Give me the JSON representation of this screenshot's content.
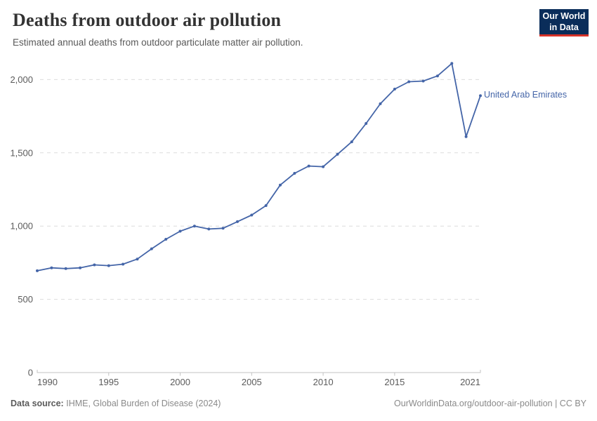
{
  "header": {
    "title": "Deaths from outdoor air pollution",
    "subtitle": "Estimated annual deaths from outdoor particulate matter air pollution.",
    "logo": {
      "line1": "Our World",
      "line2": "in Data"
    }
  },
  "chart_data": {
    "type": "line",
    "title": "Deaths from outdoor air pollution",
    "series": [
      {
        "name": "United Arab Emirates",
        "x": [
          1990,
          1991,
          1992,
          1993,
          1994,
          1995,
          1996,
          1997,
          1998,
          1999,
          2000,
          2001,
          2002,
          2003,
          2004,
          2005,
          2006,
          2007,
          2008,
          2009,
          2010,
          2011,
          2012,
          2013,
          2014,
          2015,
          2016,
          2017,
          2018,
          2019,
          2020,
          2021
        ],
        "values": [
          695,
          715,
          710,
          715,
          735,
          730,
          740,
          775,
          845,
          910,
          965,
          1000,
          980,
          985,
          1030,
          1075,
          1140,
          1280,
          1360,
          1410,
          1405,
          1490,
          1575,
          1700,
          1835,
          1935,
          1985,
          1990,
          2025,
          2110,
          1610,
          1890
        ]
      }
    ],
    "x_ticks": {
      "values": [
        1990,
        1995,
        2000,
        2005,
        2010,
        2015,
        2021
      ],
      "labels": [
        "1990",
        "1995",
        "2000",
        "2005",
        "2010",
        "2015",
        "2021"
      ]
    },
    "y_ticks": {
      "values": [
        0,
        500,
        1000,
        1500,
        2000
      ],
      "labels": [
        "0",
        "500",
        "1,000",
        "1,500",
        "2,000"
      ]
    },
    "xlim": [
      1990,
      2021
    ],
    "ylim": [
      0,
      2000
    ],
    "grid": true,
    "grid_style": "dashed-horizontal",
    "legend": "inline-end-label",
    "xlabel": "",
    "ylabel": ""
  },
  "colors": {
    "accent_line": "#4465a8",
    "grid": "#dcdcdc",
    "axis": "#c3c3c3",
    "tick_text": "#5b5b5b",
    "title": "#333333",
    "subtitle": "#595959",
    "logo_bg": "#0a2d5a",
    "logo_red": "#d73228",
    "footer": "#8a8a8a",
    "footer_bold": "#5b5b5b"
  },
  "footer": {
    "source_label": "Data source:",
    "source_text": "IHME, Global Burden of Disease (2024)",
    "citation": "OurWorldinData.org/outdoor-air-pollution | CC BY"
  }
}
